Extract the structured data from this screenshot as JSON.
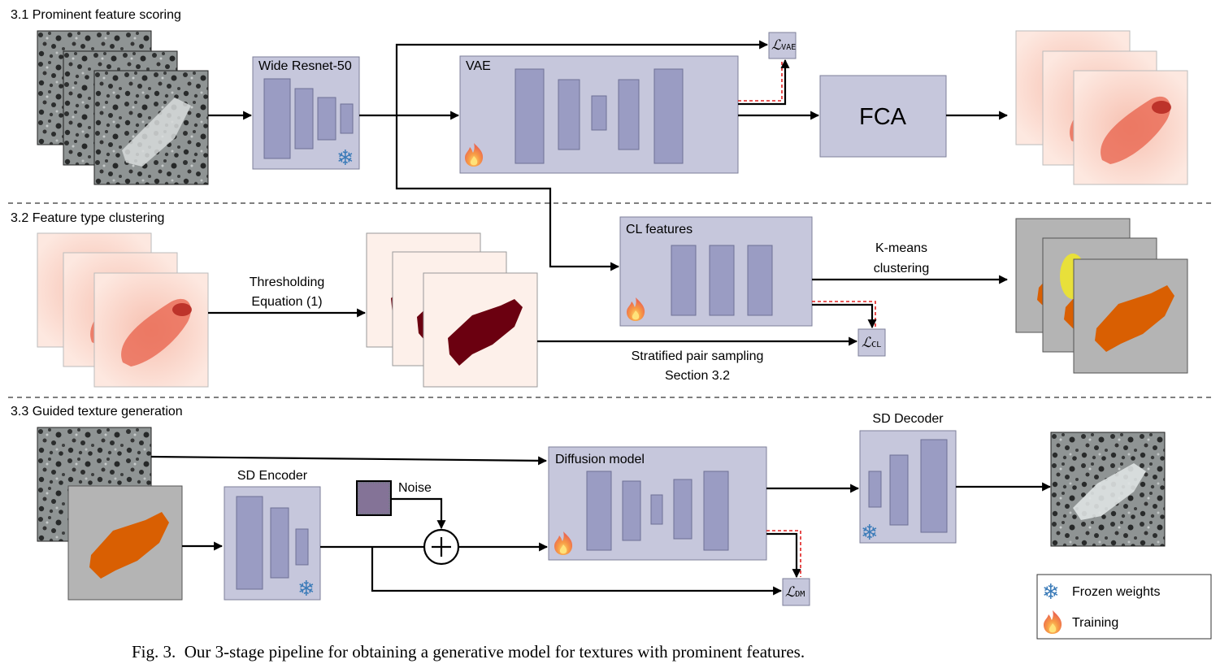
{
  "sections": {
    "s1": "3.1 Prominent feature scoring",
    "s2": "3.2 Feature type clustering",
    "s3": "3.3 Guided texture generation"
  },
  "modules": {
    "resnet": "Wide Resnet-50",
    "vae": "VAE",
    "fca": "FCA",
    "cl": "CL features",
    "encoder": "SD Encoder",
    "diffusion": "Diffusion model",
    "decoder": "SD Decoder",
    "noise": "Noise"
  },
  "edges": {
    "threshold_1": "Thresholding",
    "threshold_2": "Equation (1)",
    "kmeans_1": "K-means",
    "kmeans_2": "clustering",
    "sampling_1": "Stratified pair sampling",
    "sampling_2": "Section 3.2"
  },
  "losses": {
    "vae": {
      "script": "ℒ",
      "sub": "VAE"
    },
    "cl": {
      "script": "ℒ",
      "sub": "CL"
    },
    "dm": {
      "script": "ℒ",
      "sub": "DM"
    }
  },
  "legend": {
    "frozen": "Frozen weights",
    "training": "Training",
    "frozen_icon": "snowflake-icon",
    "training_icon": "flame-icon"
  },
  "colors": {
    "module_fill": "#c6c7dc",
    "bar_fill": "#9a9cc3",
    "frozen": "#3b7bb8",
    "training": "#f06a3c",
    "mask": "#6b0010",
    "cluster_orange": "#d95f02",
    "cluster_yellow": "#e8e03a",
    "loss_arrow": "#e02020"
  },
  "caption": "Fig. 3.  Our 3-stage pipeline for obtaining a generative model for textures with prominent features."
}
